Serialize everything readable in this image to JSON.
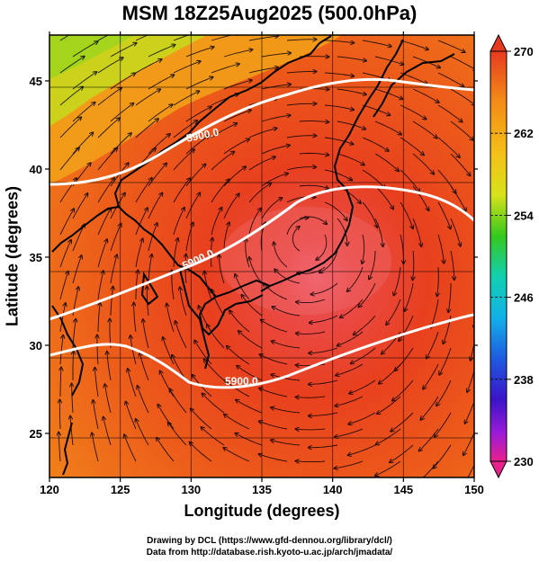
{
  "title": "MSM 18Z25Aug2025 (500.0hPa)",
  "xlabel": "Longitude (degrees)",
  "ylabel": "Latitude  (degrees)",
  "credits": {
    "line1": "Drawing by DCL (https://www.gfd-dennou.org/library/dcl/)",
    "line2": "Data from http://database.rish.kyoto-u.ac.jp/arch/jmadata/"
  },
  "chart_data": {
    "type": "heatmap",
    "x_range": [
      120,
      150
    ],
    "y_range": [
      22.5,
      47.6
    ],
    "x_ticks": [
      "120",
      "125",
      "130",
      "135",
      "140",
      "145",
      "150"
    ],
    "y_ticks": [
      "25",
      "30",
      "35",
      "40",
      "45"
    ],
    "colorbar": {
      "min": 230,
      "max": 270,
      "tick_labels": [
        "270",
        "262",
        "254",
        "246",
        "238",
        "230"
      ],
      "colors": [
        "#e8208c",
        "#9a1bd8",
        "#3b14c8",
        "#1f5ae0",
        "#12b0e8",
        "#12d0b0",
        "#18c070",
        "#36c81e",
        "#8ed41c",
        "#d8e21a",
        "#f4c018",
        "#f48a18",
        "#ee5a1c",
        "#e63a20"
      ]
    },
    "contours": [
      {
        "label": "5900.0",
        "lon": 136,
        "lat": 28.7
      },
      {
        "label": "5900.0",
        "lon": 127,
        "lat": 34.0
      },
      {
        "label": "5900.0",
        "lon": 128.6,
        "lat": 43.6
      }
    ],
    "center": {
      "lon": 138.2,
      "lat": 36.0
    }
  }
}
